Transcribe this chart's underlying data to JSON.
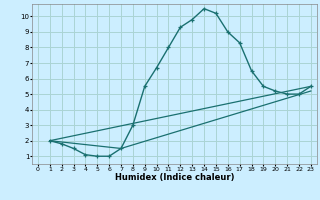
{
  "xlabel": "Humidex (Indice chaleur)",
  "bg_color": "#cceeff",
  "grid_color": "#aad4d4",
  "line_color": "#1a7070",
  "xlim": [
    -0.5,
    23.5
  ],
  "ylim": [
    0.5,
    10.8
  ],
  "xticks": [
    0,
    1,
    2,
    3,
    4,
    5,
    6,
    7,
    8,
    9,
    10,
    11,
    12,
    13,
    14,
    15,
    16,
    17,
    18,
    19,
    20,
    21,
    22,
    23
  ],
  "yticks": [
    1,
    2,
    3,
    4,
    5,
    6,
    7,
    8,
    9,
    10
  ],
  "curve_x": [
    1,
    2,
    3,
    4,
    5,
    6,
    7,
    8,
    9,
    10,
    11,
    12,
    13,
    14,
    15,
    16,
    17,
    18,
    19,
    20,
    21,
    22,
    23
  ],
  "curve_y": [
    2.0,
    1.8,
    1.5,
    1.1,
    1.0,
    1.0,
    1.5,
    3.0,
    5.5,
    6.7,
    8.0,
    9.3,
    9.8,
    10.5,
    10.2,
    9.0,
    8.3,
    6.5,
    5.5,
    5.2,
    5.0,
    5.0,
    5.5
  ],
  "line2_x": [
    1,
    23
  ],
  "line2_y": [
    2.0,
    5.5
  ],
  "line3_x": [
    1,
    7,
    23
  ],
  "line3_y": [
    2.0,
    1.5,
    5.2
  ]
}
